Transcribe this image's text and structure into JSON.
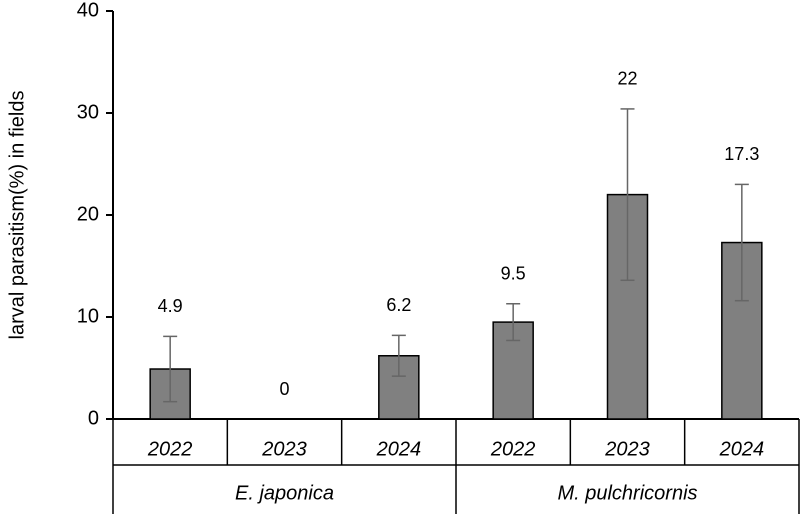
{
  "chart_data": {
    "type": "bar",
    "y_label": "larval parasitism(%) in fields",
    "categories": [
      "2022",
      "2023",
      "2024",
      "2022",
      "2023",
      "2024"
    ],
    "groups": [
      "E. japonica",
      "M. pulchricornis"
    ],
    "values": [
      4.9,
      0,
      6.2,
      9.5,
      22,
      17.3
    ],
    "errors": [
      3.2,
      0,
      2.0,
      1.8,
      8.4,
      5.7
    ],
    "color": "#808080",
    "ylim": [
      0,
      40
    ],
    "yticks": [
      0,
      10,
      20,
      30,
      40
    ],
    "grid": false
  }
}
